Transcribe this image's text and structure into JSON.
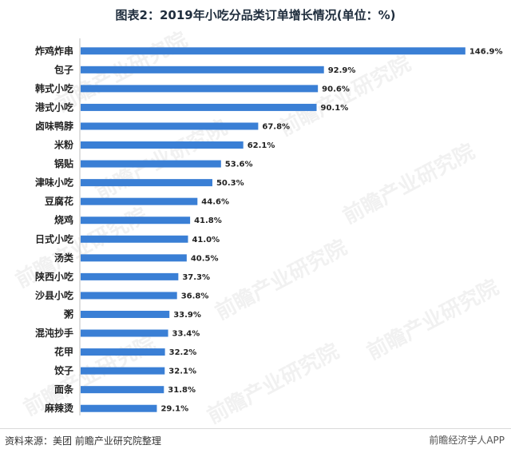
{
  "chart_data": {
    "type": "bar",
    "orientation": "horizontal",
    "title": "图表2：2019年小吃分品类订单增长情况(单位：%)",
    "categories": [
      "炸鸡炸串",
      "包子",
      "韩式小吃",
      "港式小吃",
      "卤味鸭脖",
      "米粉",
      "锅贴",
      "津味小吃",
      "豆腐花",
      "烧鸡",
      "日式小吃",
      "汤类",
      "陕西小吃",
      "沙县小吃",
      "粥",
      "混沌抄手",
      "花甲",
      "饺子",
      "面条",
      "麻辣烫"
    ],
    "values": [
      146.9,
      92.9,
      90.6,
      90.1,
      67.8,
      62.1,
      53.6,
      50.3,
      44.6,
      41.8,
      41.0,
      40.5,
      37.3,
      36.8,
      33.9,
      33.4,
      32.2,
      32.1,
      31.8,
      29.1
    ],
    "value_labels": [
      "146.9%",
      "92.9%",
      "90.6%",
      "90.1%",
      "67.8%",
      "62.1%",
      "53.6%",
      "50.3%",
      "44.6%",
      "41.8%",
      "41.0%",
      "40.5%",
      "37.3%",
      "36.8%",
      "33.9%",
      "33.4%",
      "32.2%",
      "32.1%",
      "31.8%",
      "29.1%"
    ],
    "bar_color": "#3a7fd5",
    "xlim": [
      0,
      150
    ],
    "grid": false,
    "legend": "none"
  },
  "source": "资料来源：美团 前瞻产业研究院整理",
  "watermark_brand": "前瞻产业研究院",
  "corner_watermark": "前瞻经济学人APP"
}
